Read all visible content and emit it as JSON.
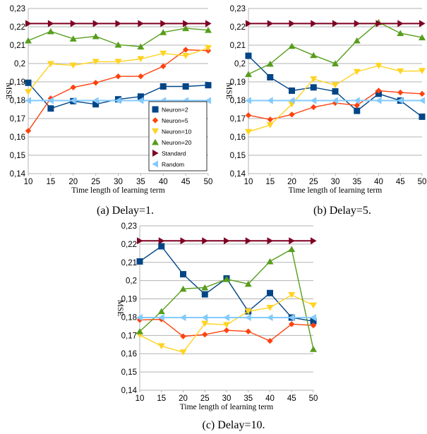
{
  "chart_data": [
    {
      "type": "line",
      "caption": "(a)  Delay=1.",
      "xlabel": "Time length of learning term",
      "ylabel": "MSE",
      "xlim": [
        10,
        50
      ],
      "ylim": [
        0.14,
        0.23
      ],
      "x": [
        10,
        15,
        20,
        25,
        30,
        35,
        40,
        45,
        50
      ],
      "x_tick_labels": [
        "10",
        "15",
        "20",
        "25",
        "30",
        "35",
        "40",
        "45",
        "50"
      ],
      "y_ticks": [
        0.14,
        0.15,
        0.16,
        0.17,
        0.18,
        0.19,
        0.2,
        0.21,
        0.22,
        0.23
      ],
      "y_tick_labels": [
        "0,14",
        "0,15",
        "0,16",
        "0,17",
        "0,18",
        "0,19",
        "0,2",
        "0,21",
        "0,22",
        "0,23"
      ],
      "grid": "horizontal",
      "legend_position": "bottom-right",
      "series": [
        {
          "name": "Neuron=2",
          "values": [
            0.1895,
            0.1755,
            0.1795,
            0.1778,
            0.1805,
            0.182,
            0.1875,
            0.1875,
            0.1882
          ]
        },
        {
          "name": "Neuron=5",
          "values": [
            0.1633,
            0.181,
            0.187,
            0.1895,
            0.193,
            0.193,
            0.1985,
            0.2075,
            0.207
          ]
        },
        {
          "name": "Neuron=10",
          "values": [
            0.1845,
            0.1998,
            0.199,
            0.201,
            0.201,
            0.2025,
            0.2055,
            0.2042,
            0.2085
          ]
        },
        {
          "name": "Neuron=20",
          "values": [
            0.2125,
            0.2175,
            0.2135,
            0.2148,
            0.2102,
            0.2092,
            0.217,
            0.2192,
            0.2182
          ]
        },
        {
          "name": "Standard",
          "values": [
            0.2218,
            0.2218,
            0.2218,
            0.2218,
            0.2218,
            0.2218,
            0.2218,
            0.2218,
            0.2218
          ]
        },
        {
          "name": "Random",
          "values": [
            0.1798,
            0.1798,
            0.1798,
            0.1798,
            0.1798,
            0.1798,
            0.1798,
            0.1798,
            0.1798
          ]
        }
      ]
    },
    {
      "type": "line",
      "caption": "(b)  Delay=5.",
      "xlabel": "Time length of learning term",
      "ylabel": "MSE",
      "xlim": [
        10,
        50
      ],
      "ylim": [
        0.14,
        0.23
      ],
      "x": [
        10,
        15,
        20,
        25,
        30,
        35,
        40,
        45,
        50
      ],
      "x_tick_labels": [
        "10",
        "15",
        "20",
        "25",
        "30",
        "35",
        "40",
        "45",
        "50"
      ],
      "y_ticks": [
        0.14,
        0.15,
        0.16,
        0.17,
        0.18,
        0.19,
        0.2,
        0.21,
        0.22,
        0.23
      ],
      "y_tick_labels": [
        "0,14",
        "0,15",
        "0,16",
        "0,17",
        "0,18",
        "0,19",
        "0,2",
        "0,21",
        "0,22",
        "0,23"
      ],
      "grid": "horizontal",
      "series": [
        {
          "name": "Neuron=2",
          "values": [
            0.2042,
            0.1925,
            0.1852,
            0.187,
            0.1848,
            0.1742,
            0.1835,
            0.1798,
            0.171
          ]
        },
        {
          "name": "Neuron=5",
          "values": [
            0.1718,
            0.1695,
            0.1722,
            0.1762,
            0.1785,
            0.1772,
            0.1852,
            0.1842,
            0.1835
          ]
        },
        {
          "name": "Neuron=10",
          "values": [
            0.1628,
            0.1665,
            0.1778,
            0.1915,
            0.1882,
            0.1955,
            0.1988,
            0.1958,
            0.196
          ]
        },
        {
          "name": "Neuron=20",
          "values": [
            0.1942,
            0.1998,
            0.2095,
            0.2045,
            0.2,
            0.2125,
            0.2225,
            0.2165,
            0.2142
          ]
        },
        {
          "name": "Standard",
          "values": [
            0.2218,
            0.2218,
            0.2218,
            0.2218,
            0.2218,
            0.2218,
            0.2218,
            0.2218,
            0.2218
          ]
        },
        {
          "name": "Random",
          "values": [
            0.1798,
            0.1798,
            0.1798,
            0.1798,
            0.1798,
            0.1798,
            0.1798,
            0.1798,
            0.1798
          ]
        }
      ]
    },
    {
      "type": "line",
      "caption": "(c)  Delay=10.",
      "xlabel": "Time length of learning term",
      "ylabel": "MSE",
      "xlim": [
        10,
        50
      ],
      "ylim": [
        0.14,
        0.23
      ],
      "x": [
        10,
        15,
        20,
        25,
        30,
        35,
        40,
        45,
        50
      ],
      "x_tick_labels": [
        "10",
        "15",
        "20",
        "25",
        "30",
        "35",
        "40",
        "45",
        "50"
      ],
      "y_ticks": [
        0.14,
        0.15,
        0.16,
        0.17,
        0.18,
        0.19,
        0.2,
        0.21,
        0.22,
        0.23
      ],
      "y_tick_labels": [
        "0,14",
        "0,15",
        "0,16",
        "0,17",
        "0,18",
        "0,19",
        "0,2",
        "0,21",
        "0,22",
        "0,23"
      ],
      "grid": "horizontal",
      "series": [
        {
          "name": "Neuron=2",
          "values": [
            0.2105,
            0.2188,
            0.2035,
            0.1925,
            0.2012,
            0.1832,
            0.1932,
            0.1798,
            0.1778
          ]
        },
        {
          "name": "Neuron=5",
          "values": [
            0.1785,
            0.1788,
            0.1695,
            0.1705,
            0.1728,
            0.1722,
            0.167,
            0.1762,
            0.1755
          ]
        },
        {
          "name": "Neuron=10",
          "values": [
            0.1702,
            0.1642,
            0.1608,
            0.1765,
            0.1758,
            0.1832,
            0.1852,
            0.1922,
            0.1865
          ]
        },
        {
          "name": "Neuron=20",
          "values": [
            0.1722,
            0.1832,
            0.1955,
            0.1962,
            0.2008,
            0.1982,
            0.2105,
            0.2172,
            0.1625
          ]
        },
        {
          "name": "Standard",
          "values": [
            0.2218,
            0.2218,
            0.2218,
            0.2218,
            0.2218,
            0.2218,
            0.2218,
            0.2218,
            0.2218
          ]
        },
        {
          "name": "Random",
          "values": [
            0.1798,
            0.1798,
            0.1798,
            0.1798,
            0.1798,
            0.1798,
            0.1798,
            0.1798,
            0.1798
          ]
        }
      ]
    }
  ],
  "series_style": [
    {
      "name": "Neuron=2",
      "color": "#004586",
      "marker": "square"
    },
    {
      "name": "Neuron=5",
      "color": "#ff420e",
      "marker": "diamond"
    },
    {
      "name": "Neuron=10",
      "color": "#ffd320",
      "marker": "triangle-down"
    },
    {
      "name": "Neuron=20",
      "color": "#579d1c",
      "marker": "triangle-up"
    },
    {
      "name": "Standard",
      "color": "#7e0021",
      "marker": "triangle-right"
    },
    {
      "name": "Random",
      "color": "#83caff",
      "marker": "triangle-left"
    }
  ],
  "colors": {
    "axis": "#b3b3b3",
    "grid": "#b3b3b3",
    "text": "#000000"
  }
}
